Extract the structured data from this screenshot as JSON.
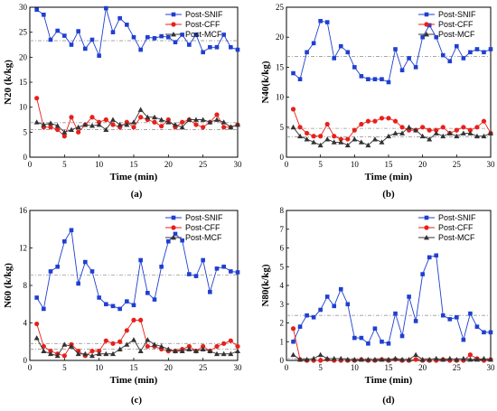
{
  "series_styles": [
    {
      "name": "Post-SNIF",
      "color": "#1f3fd0",
      "marker": "square"
    },
    {
      "name": "Post-CFF",
      "color": "#e8201a",
      "marker": "circle"
    },
    {
      "name": "Post-MCF",
      "color": "#333333",
      "marker": "triangle"
    }
  ],
  "chart_data": [
    {
      "id": "a",
      "type": "line",
      "caption": "(a)",
      "xlabel": "Time (min)",
      "ylabel": "N20 (k/kg)",
      "xlim": [
        0,
        30
      ],
      "ylim": [
        0,
        30
      ],
      "xticks": [
        0,
        5,
        10,
        15,
        20,
        25,
        30
      ],
      "yticks": [
        0,
        5,
        10,
        15,
        20,
        25,
        30
      ],
      "legend": "top-right",
      "x": [
        1,
        2,
        3,
        4,
        5,
        6,
        7,
        8,
        9,
        10,
        11,
        12,
        13,
        14,
        15,
        16,
        17,
        18,
        19,
        20,
        21,
        22,
        23,
        24,
        25,
        26,
        27,
        28,
        29,
        30
      ],
      "series": [
        {
          "name": "Post-SNIF",
          "values": [
            29.5,
            28.5,
            23.5,
            25.3,
            24.3,
            22.5,
            25.2,
            21.7,
            23.5,
            20.3,
            29.8,
            25.0,
            27.8,
            26.5,
            24.0,
            21.5,
            24.0,
            23.8,
            24.2,
            24.0,
            23.0,
            24.5,
            22.5,
            24.5,
            21.0,
            22.0,
            22.0,
            24.5,
            22.0,
            21.5
          ]
        },
        {
          "name": "Post-CFF",
          "values": [
            11.8,
            6.0,
            6.0,
            5.5,
            4.2,
            8.0,
            5.0,
            6.5,
            8.0,
            7.0,
            7.5,
            6.5,
            6.0,
            7.0,
            6.0,
            8.0,
            7.5,
            7.0,
            6.2,
            7.5,
            6.0,
            7.0,
            7.5,
            6.5,
            6.0,
            7.0,
            8.5,
            6.0,
            6.0,
            6.5
          ]
        },
        {
          "name": "Post-MCF",
          "values": [
            7.0,
            6.5,
            6.8,
            6.3,
            5.0,
            5.5,
            6.0,
            6.5,
            6.3,
            6.5,
            5.5,
            7.5,
            6.5,
            6.5,
            7.0,
            9.5,
            8.0,
            8.0,
            7.5,
            7.0,
            6.5,
            6.0,
            7.5,
            7.5,
            7.5,
            7.0,
            7.5,
            7.0,
            6.0,
            6.5
          ]
        }
      ],
      "reference_lines": [
        {
          "series": "Post-SNIF",
          "y": 23.3
        },
        {
          "series": "Post-CFF",
          "y": 6.9
        },
        {
          "series": "Post-MCF",
          "y": 5.5
        }
      ]
    },
    {
      "id": "b",
      "type": "line",
      "caption": "(b)",
      "xlabel": "Time (min)",
      "ylabel": "N40(k/kg)",
      "xlim": [
        0,
        30
      ],
      "ylim": [
        0,
        25
      ],
      "xticks": [
        0,
        5,
        10,
        15,
        20,
        25,
        30
      ],
      "yticks": [
        0,
        5,
        10,
        15,
        20,
        25
      ],
      "legend": "top-right",
      "x": [
        1,
        2,
        3,
        4,
        5,
        6,
        7,
        8,
        9,
        10,
        11,
        12,
        13,
        14,
        15,
        16,
        17,
        18,
        19,
        20,
        21,
        22,
        23,
        24,
        25,
        26,
        27,
        28,
        29,
        30
      ],
      "series": [
        {
          "name": "Post-SNIF",
          "values": [
            14.0,
            13.0,
            17.5,
            19.0,
            22.7,
            22.5,
            16.5,
            18.5,
            17.5,
            15.0,
            13.5,
            13.0,
            13.0,
            13.0,
            12.5,
            18.0,
            14.5,
            16.5,
            15.0,
            20.0,
            22.0,
            20.0,
            17.0,
            16.0,
            18.5,
            16.5,
            17.5,
            18.0,
            17.5,
            18.0
          ]
        },
        {
          "name": "Post-CFF",
          "values": [
            8.0,
            5.0,
            4.0,
            3.5,
            3.5,
            5.5,
            3.5,
            3.0,
            3.0,
            4.5,
            5.5,
            6.0,
            6.0,
            6.5,
            6.5,
            6.0,
            5.0,
            4.5,
            4.5,
            5.0,
            4.5,
            4.5,
            5.0,
            4.0,
            4.5,
            5.0,
            4.5,
            5.0,
            6.0,
            4.0
          ]
        },
        {
          "name": "Post-MCF",
          "values": [
            5.0,
            3.5,
            3.0,
            2.5,
            2.0,
            3.0,
            2.5,
            2.5,
            2.0,
            3.0,
            2.5,
            2.0,
            3.0,
            2.5,
            3.5,
            4.0,
            4.0,
            5.0,
            4.5,
            3.5,
            3.0,
            4.0,
            3.5,
            4.0,
            3.5,
            4.0,
            4.0,
            3.5,
            3.5,
            4.0
          ]
        }
      ],
      "reference_lines": [
        {
          "series": "Post-SNIF",
          "y": 16.8
        },
        {
          "series": "Post-CFF",
          "y": 4.8
        },
        {
          "series": "Post-MCF",
          "y": 3.4
        }
      ]
    },
    {
      "id": "c",
      "type": "line",
      "caption": "(c)",
      "xlabel": "Time (min)",
      "ylabel": "N60 (k/kg)",
      "xlim": [
        0,
        30
      ],
      "ylim": [
        0,
        16
      ],
      "xticks": [
        0,
        5,
        10,
        15,
        20,
        25,
        30
      ],
      "yticks": [
        0,
        4,
        8,
        12,
        16
      ],
      "legend": "top-right",
      "x": [
        1,
        2,
        3,
        4,
        5,
        6,
        7,
        8,
        9,
        10,
        11,
        12,
        13,
        14,
        15,
        16,
        17,
        18,
        19,
        20,
        21,
        22,
        23,
        24,
        25,
        26,
        27,
        28,
        29,
        30
      ],
      "series": [
        {
          "name": "Post-SNIF",
          "values": [
            6.7,
            5.5,
            9.5,
            10.0,
            12.7,
            13.9,
            8.2,
            10.5,
            9.5,
            6.7,
            6.0,
            5.8,
            5.5,
            6.3,
            5.9,
            10.7,
            7.2,
            6.5,
            10.0,
            12.7,
            13.5,
            12.8,
            9.2,
            9.0,
            10.7,
            7.3,
            9.8,
            10.0,
            9.5,
            9.4
          ]
        },
        {
          "name": "Post-CFF",
          "values": [
            3.9,
            1.5,
            1.0,
            0.7,
            0.5,
            1.7,
            1.0,
            0.5,
            1.0,
            1.0,
            2.1,
            1.8,
            2.0,
            3.2,
            4.3,
            4.3,
            1.5,
            1.5,
            1.2,
            1.0,
            1.0,
            1.2,
            1.5,
            1.0,
            1.5,
            1.0,
            1.5,
            1.8,
            2.1,
            1.5
          ]
        },
        {
          "name": "Post-MCF",
          "values": [
            2.4,
            1.0,
            0.7,
            0.5,
            1.7,
            1.5,
            0.7,
            0.7,
            0.5,
            0.7,
            0.7,
            0.7,
            1.2,
            1.7,
            2.2,
            1.0,
            2.2,
            1.7,
            1.5,
            1.2,
            1.0,
            1.0,
            1.2,
            1.0,
            1.2,
            1.0,
            0.7,
            0.7,
            0.7,
            1.0
          ]
        }
      ],
      "reference_lines": [
        {
          "series": "Post-SNIF",
          "y": 9.1
        },
        {
          "series": "Post-CFF",
          "y": 1.8
        },
        {
          "series": "Post-MCF",
          "y": 1.2
        }
      ]
    },
    {
      "id": "d",
      "type": "line",
      "caption": "(d)",
      "xlabel": "Time (min)",
      "ylabel": "N80(k/kg)",
      "xlim": [
        0,
        30
      ],
      "ylim": [
        0,
        8
      ],
      "xticks": [
        0,
        5,
        10,
        15,
        20,
        25,
        30
      ],
      "yticks": [
        0,
        1,
        2,
        3,
        4,
        5,
        6,
        7,
        8
      ],
      "legend": "top-right",
      "x": [
        1,
        2,
        3,
        4,
        5,
        6,
        7,
        8,
        9,
        10,
        11,
        12,
        13,
        14,
        15,
        16,
        17,
        18,
        19,
        20,
        21,
        22,
        23,
        24,
        25,
        26,
        27,
        28,
        29,
        30
      ],
      "series": [
        {
          "name": "Post-SNIF",
          "values": [
            1.0,
            1.8,
            2.4,
            2.3,
            2.7,
            3.4,
            2.9,
            3.8,
            3.0,
            1.2,
            1.2,
            0.9,
            1.7,
            1.0,
            0.9,
            2.5,
            1.3,
            3.4,
            2.1,
            4.6,
            5.5,
            5.6,
            2.4,
            2.2,
            2.3,
            1.1,
            2.5,
            1.8,
            1.5,
            1.5
          ]
        },
        {
          "name": "Post-CFF",
          "values": [
            1.7,
            0.05,
            0.0,
            0.0,
            0.0,
            0.05,
            0.0,
            0.0,
            0.0,
            0.0,
            0.05,
            0.0,
            0.0,
            0.05,
            0.0,
            0.05,
            0.0,
            0.0,
            0.05,
            0.0,
            0.0,
            0.0,
            0.05,
            0.0,
            0.0,
            0.0,
            0.3,
            0.1,
            0.0,
            0.05
          ]
        },
        {
          "name": "Post-MCF",
          "values": [
            0.3,
            0.05,
            0.05,
            0.1,
            0.3,
            0.1,
            0.1,
            0.1,
            0.05,
            0.05,
            0.05,
            0.05,
            0.05,
            0.05,
            0.05,
            0.1,
            0.05,
            0.05,
            0.3,
            0.05,
            0.05,
            0.1,
            0.05,
            0.1,
            0.05,
            0.1,
            0.05,
            0.05,
            0.1,
            0.05
          ]
        }
      ],
      "reference_lines": [
        {
          "series": "Post-SNIF",
          "y": 2.4
        },
        {
          "series": "Post-CFF",
          "y": 0.1
        },
        {
          "series": "Post-MCF",
          "y": 0.1
        }
      ]
    }
  ]
}
